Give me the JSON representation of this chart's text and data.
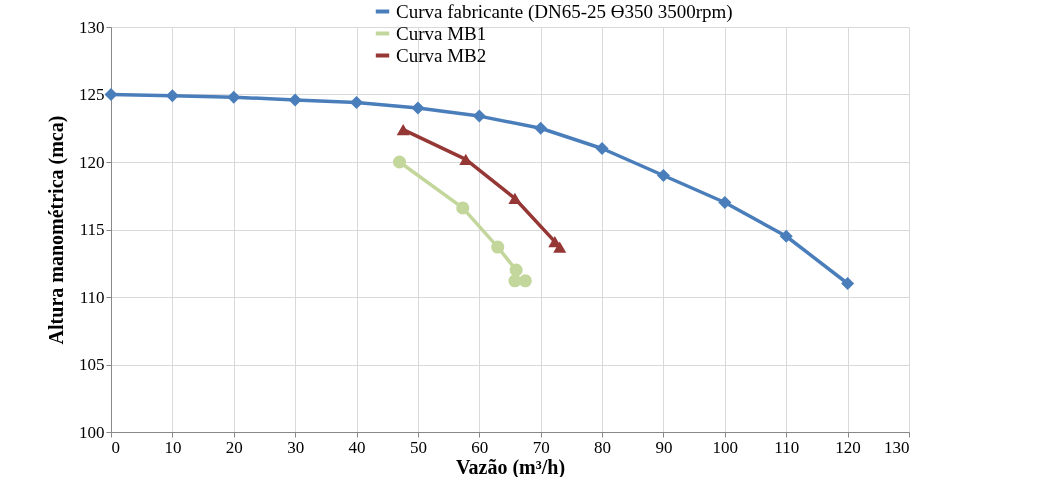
{
  "chart_data": {
    "type": "line",
    "xlabel": "Vazão (m³/h)",
    "ylabel": "Altura manométrica (mca)",
    "xlim": [
      0,
      130
    ],
    "xticks": [
      0,
      10,
      20,
      30,
      40,
      50,
      60,
      70,
      80,
      90,
      100,
      110,
      120,
      130
    ],
    "ylim": [
      100,
      130
    ],
    "yticks": [
      100,
      105,
      110,
      115,
      120,
      125,
      130
    ],
    "grid": true,
    "legend": "top right",
    "series": [
      {
        "name": "Curva fabricante (DN65-25 Ɵ350 3500rpm)",
        "color": "#4a7ebb",
        "marker": "diamond",
        "x": [
          0,
          10,
          20,
          30,
          40,
          50,
          60,
          70,
          80,
          90,
          100,
          110,
          120
        ],
        "values": [
          125,
          124.9,
          124.8,
          124.6,
          124.4,
          124,
          123.4,
          122.5,
          121,
          119,
          117,
          114.5,
          111
        ]
      },
      {
        "name": "Curva MB1",
        "color": "#c3d69b",
        "marker": "circle",
        "x": [
          47,
          57.3,
          63,
          66,
          65.8,
          67.5
        ],
        "values": [
          120,
          116.6,
          113.7,
          112,
          111.2,
          111.2
        ]
      },
      {
        "name": "Curva MB2",
        "color": "#953735",
        "marker": "triangle",
        "x": [
          47.6,
          57.8,
          65.8,
          72.3,
          73.1
        ],
        "values": [
          122.4,
          120.2,
          117.3,
          114.1,
          113.7
        ]
      }
    ]
  }
}
